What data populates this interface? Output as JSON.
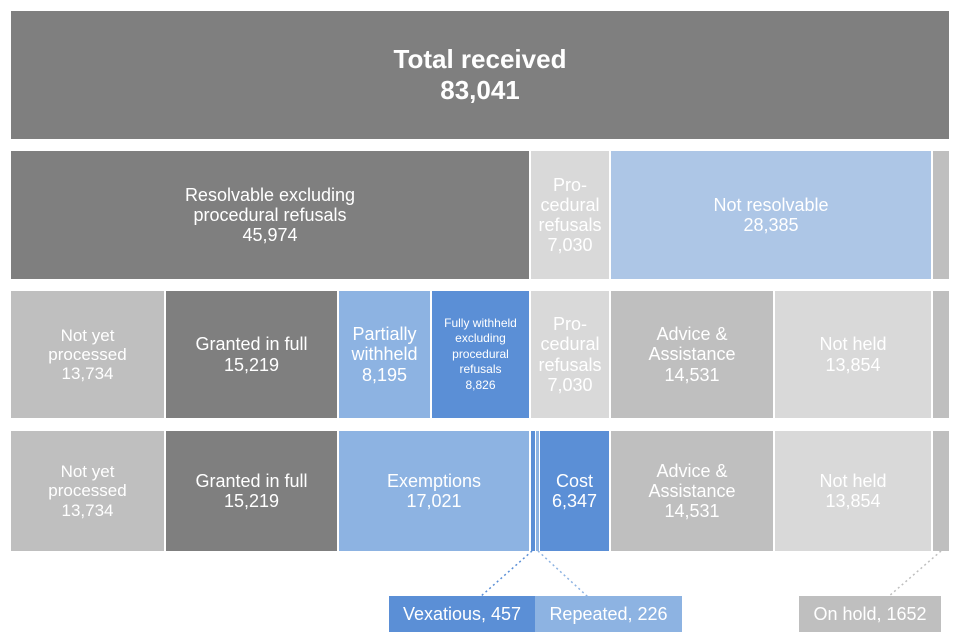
{
  "total": {
    "title": "Total received",
    "value": "83,041"
  },
  "row2": {
    "resolvable": {
      "line1": "Resolvable excluding",
      "line2": "procedural refusals",
      "value": "45,974"
    },
    "procedural": {
      "line1": "Pro-",
      "line2": "cedural",
      "line3": "refusals",
      "value": "7,030"
    },
    "not_resolvable": {
      "label": "Not resolvable",
      "value": "28,385"
    }
  },
  "row3": {
    "not_yet": {
      "line1": "Not yet",
      "line2": "processed",
      "value": "13,734"
    },
    "granted": {
      "label": "Granted in full",
      "value": "15,219"
    },
    "partially": {
      "line1": "Partially",
      "line2": "withheld",
      "value": "8,195"
    },
    "fully": {
      "line1": "Fully withheld",
      "line2": "excluding",
      "line3": "procedural",
      "line4": "refusals",
      "value": "8,826"
    },
    "procedural": {
      "line1": "Pro-",
      "line2": "cedural",
      "line3": "refusals",
      "value": "7,030"
    },
    "advice": {
      "line1": "Advice &",
      "line2": "Assistance",
      "value": "14,531"
    },
    "not_held": {
      "label": "Not held",
      "value": "13,854"
    }
  },
  "row4": {
    "not_yet": {
      "line1": "Not yet",
      "line2": "processed",
      "value": "13,734"
    },
    "granted": {
      "label": "Granted in full",
      "value": "15,219"
    },
    "exemptions": {
      "label": "Exemptions",
      "value": "17,021"
    },
    "cost": {
      "label": "Cost",
      "value": "6,347"
    },
    "advice": {
      "line1": "Advice &",
      "line2": "Assistance",
      "value": "14,531"
    },
    "not_held": {
      "label": "Not held",
      "value": "13,854"
    }
  },
  "callouts": {
    "vexatious": "Vexatious, 457",
    "repeated": "Repeated, 226",
    "on_hold": "On hold, 1652"
  },
  "colors": {
    "dark_grey": "#7f7f7f",
    "mid_grey": "#bfbfbf",
    "light_grey": "#d9d9d9",
    "pale_blue": "#adc6e6",
    "medium_blue": "#8db3e2",
    "strong_blue": "#5b8fd6"
  }
}
